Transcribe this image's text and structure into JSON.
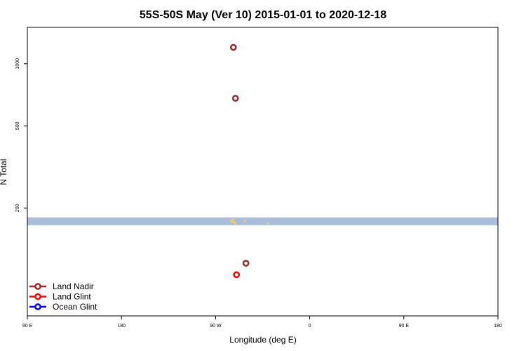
{
  "chart_data": {
    "type": "scatter",
    "title": "55S-50S May (Ver 10)   2015-01-01 to 2020-12-18",
    "xlabel": "Longitude (deg E)",
    "ylabel": "N Total",
    "x_ticks": [
      {
        "value": 90,
        "label": "90 E"
      },
      {
        "value": 180,
        "label": "180"
      },
      {
        "value": 270,
        "label": "90 W"
      },
      {
        "value": 360,
        "label": "0"
      },
      {
        "value": 450,
        "label": "90 E"
      },
      {
        "value": 540,
        "label": "180"
      }
    ],
    "xlim": [
      90,
      540
    ],
    "y_scale": "log",
    "ylim": [
      60,
      1500
    ],
    "y_ticks": [
      {
        "value": 200,
        "label": "200"
      },
      {
        "value": 500,
        "label": "500"
      },
      {
        "value": 1000,
        "label": "1000"
      }
    ],
    "band": {
      "y_range": [
        165,
        180
      ],
      "color": "#a9bcd9"
    },
    "band_points": [
      {
        "x": 285,
        "y": 174
      },
      {
        "x": 286,
        "y": 171
      },
      {
        "x": 287,
        "y": 176
      },
      {
        "x": 288,
        "y": 170
      },
      {
        "x": 289,
        "y": 168
      },
      {
        "x": 298,
        "y": 173
      },
      {
        "x": 320,
        "y": 168
      }
    ],
    "band_point_color": "#f2c96b",
    "series": [
      {
        "name": "Land Nadir",
        "color": "#9b2a2a",
        "points": [
          {
            "x": 287,
            "y": 1200
          },
          {
            "x": 289,
            "y": 680
          },
          {
            "x": 299,
            "y": 108
          }
        ]
      },
      {
        "name": "Land Glint",
        "color": "#ff0000",
        "points": [
          {
            "x": 290,
            "y": 95
          }
        ]
      },
      {
        "name": "Ocean Glint",
        "color": "#0000ff",
        "points": []
      }
    ],
    "legend_position": "bottom-left"
  }
}
